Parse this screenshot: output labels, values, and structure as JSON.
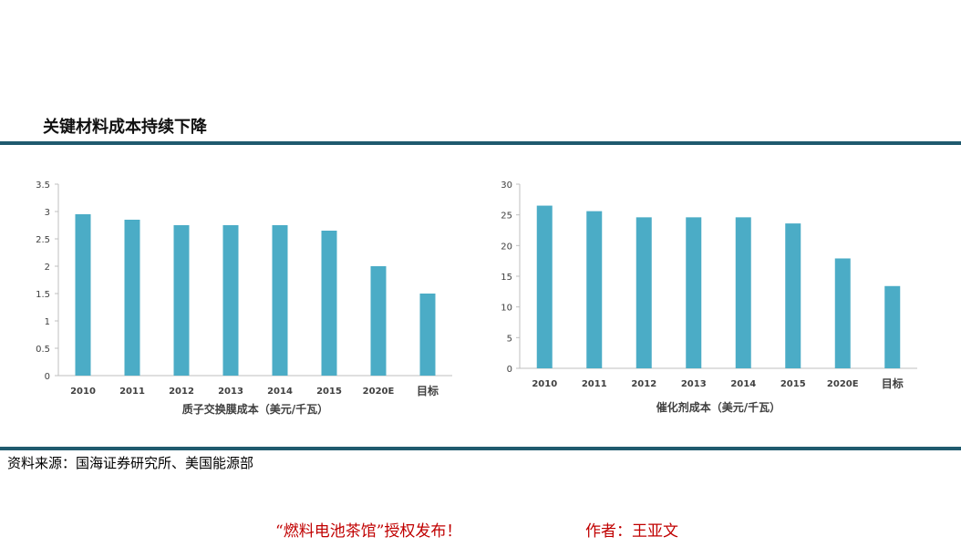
{
  "page": {
    "title": "关键材料成本持续下降",
    "source": "资料来源：国海证券研究所、美国能源部",
    "footer_left": "“燃料电池茶馆”授权发布！",
    "footer_right": "作者：王亚文"
  },
  "colors": {
    "bar": "#4bacc6",
    "rule": "#1f5a6e",
    "footer": "#c00000"
  },
  "chart_data": [
    {
      "type": "bar",
      "categories": [
        "2010",
        "2011",
        "2012",
        "2013",
        "2014",
        "2015",
        "2020E",
        "目标"
      ],
      "values": [
        2.95,
        2.85,
        2.75,
        2.75,
        2.75,
        2.65,
        2.0,
        1.5
      ],
      "xlabel": "质子交换膜成本（美元/千瓦）",
      "ylabel": "",
      "ylim": [
        0,
        3.5
      ],
      "yticks": [
        "0",
        "0.5",
        "1",
        "1.5",
        "2",
        "2.5",
        "3",
        "3.5"
      ],
      "grid": false
    },
    {
      "type": "bar",
      "categories": [
        "2010",
        "2011",
        "2012",
        "2013",
        "2014",
        "2015",
        "2020E",
        "目标"
      ],
      "values": [
        26.5,
        25.6,
        24.6,
        24.6,
        24.6,
        23.6,
        17.9,
        13.4
      ],
      "xlabel": "催化剂成本（美元/千瓦）",
      "ylabel": "",
      "ylim": [
        0,
        30
      ],
      "yticks": [
        "0",
        "5",
        "10",
        "15",
        "20",
        "25",
        "30"
      ],
      "grid": false
    }
  ]
}
